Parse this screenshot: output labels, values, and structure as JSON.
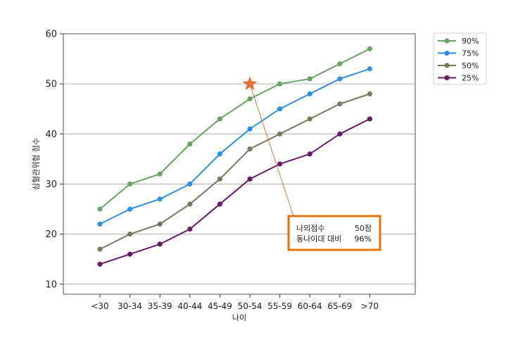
{
  "chart_data": {
    "type": "line",
    "xlabel": "나이",
    "ylabel": "심혈관위험 점수",
    "ylim": [
      8,
      60
    ],
    "yticks": [
      10,
      20,
      30,
      40,
      50,
      60
    ],
    "grid": "horizontal",
    "legend_position": "right-outside-top",
    "categories": [
      "<30",
      "30-34",
      "35-39",
      "40-44",
      "45-49",
      "50-54",
      "55-59",
      "60-64",
      "65-69",
      ">70"
    ],
    "series": [
      {
        "name": "90%",
        "color": "#6aa464",
        "values": [
          25,
          30,
          32,
          38,
          43,
          47,
          50,
          51,
          54,
          57
        ]
      },
      {
        "name": "75%",
        "color": "#2e8fe0",
        "values": [
          22,
          25,
          27,
          30,
          36,
          41,
          45,
          48,
          51,
          53
        ]
      },
      {
        "name": "50%",
        "color": "#757a5e",
        "values": [
          17,
          20,
          22,
          26,
          31,
          37,
          40,
          43,
          46,
          48
        ]
      },
      {
        "name": "25%",
        "color": "#661a66",
        "values": [
          14,
          16,
          18,
          21,
          26,
          31,
          34,
          36,
          40,
          43
        ]
      }
    ],
    "marker": {
      "category": "50-54",
      "value": 50,
      "color": "#e8703a",
      "shape": "star"
    },
    "annotation": {
      "lines": [
        {
          "label": "나의점수",
          "value": "50점"
        },
        {
          "label": "동나이대 대비",
          "value": "96%"
        }
      ],
      "border_color": "#e8700c"
    }
  }
}
